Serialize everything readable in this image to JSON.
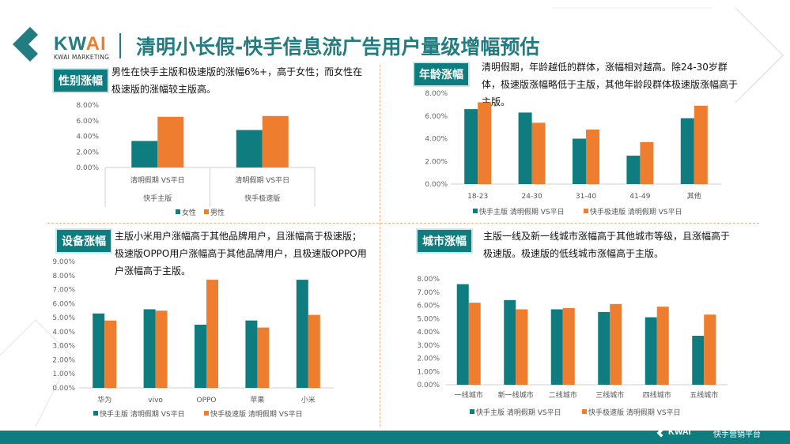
{
  "header": {
    "brand": "KW",
    "brand_accent": "AI",
    "brand_sub": "KWAI MARKETING",
    "title": "清明小长假-快手信息流广告用户量级增幅预估"
  },
  "colors": {
    "teal": "#0f7d7f",
    "orange": "#ef7d2f"
  },
  "sections": [
    {
      "tag": "性别涨幅",
      "desc": "男性在快手主版和极速版的涨幅6%+，高于女性；而女性在极速版的涨幅较主版高。"
    },
    {
      "tag": "年龄涨幅",
      "desc": "清明假期，年龄越低的群体，涨幅相对越高。除24-30岁群体，极速版涨幅略低于主版，其他年龄段群体极速版涨幅高于主版。"
    },
    {
      "tag": "设备涨幅",
      "desc": "主版小米用户涨幅高于其他品牌用户，且涨幅高于极速版；极速版OPPO用户涨幅高于其他品牌用户，且极速版OPPO用户涨幅高于主版。"
    },
    {
      "tag": "城市涨幅",
      "desc": "主版一线及新一线城市涨幅高于其他城市等级，且涨幅高于极速版。极速版的低线城市涨幅高于主版。"
    }
  ],
  "chart_data": [
    {
      "type": "bar",
      "categories": [
        "清明假期 VS平日",
        "清明假期 VS平日"
      ],
      "group_labels": [
        "快手主版",
        "快手极速版"
      ],
      "yticks": [
        "0.00%",
        "2.00%",
        "4.00%",
        "6.00%",
        "8.00%"
      ],
      "ylim": [
        0,
        8
      ],
      "series": [
        {
          "name": "女性",
          "values": [
            3.4,
            4.8
          ]
        },
        {
          "name": "男性",
          "values": [
            6.5,
            6.6
          ]
        }
      ],
      "legend": "bottom"
    },
    {
      "type": "bar",
      "categories": [
        "18-23",
        "24-30",
        "31-40",
        "41-49",
        "其他"
      ],
      "yticks": [
        "0.00%",
        "2.00%",
        "4.00%",
        "6.00%",
        "8.00%"
      ],
      "ylim": [
        0,
        8
      ],
      "series": [
        {
          "name": "快手主版 清明假期 VS平日",
          "values": [
            6.6,
            6.3,
            4.0,
            2.5,
            5.8
          ]
        },
        {
          "name": "快手极速版 清明假期 VS平日",
          "values": [
            7.2,
            5.4,
            4.8,
            3.7,
            6.9
          ]
        }
      ],
      "legend": "bottom"
    },
    {
      "type": "bar",
      "categories": [
        "华为",
        "vivo",
        "OPPO",
        "苹果",
        "小米"
      ],
      "yticks": [
        "0.00%",
        "1.00%",
        "2.00%",
        "3.00%",
        "4.00%",
        "5.00%",
        "6.00%",
        "7.00%",
        "8.00%",
        "9.00%"
      ],
      "ylim": [
        0,
        9
      ],
      "series": [
        {
          "name": "快手主版 清明假期 VS平日",
          "values": [
            5.3,
            5.6,
            4.5,
            4.8,
            7.7
          ]
        },
        {
          "name": "快手极速版 清明假期 VS平日",
          "values": [
            4.8,
            5.5,
            7.7,
            4.3,
            5.2
          ]
        }
      ],
      "legend": "bottom"
    },
    {
      "type": "bar",
      "categories": [
        "一线城市",
        "新一线城市",
        "二线城市",
        "三线城市",
        "四线城市",
        "五线城市"
      ],
      "yticks": [
        "0.00%",
        "1.00%",
        "2.00%",
        "3.00%",
        "4.00%",
        "5.00%",
        "6.00%",
        "7.00%",
        "8.00%"
      ],
      "ylim": [
        0,
        8
      ],
      "series": [
        {
          "name": "快手主版 清明假期 VS平日",
          "values": [
            7.6,
            6.4,
            5.7,
            5.5,
            5.1,
            3.7
          ]
        },
        {
          "name": "快手极速版 清明假期 VS平日",
          "values": [
            6.2,
            5.7,
            5.8,
            6.1,
            5.9,
            5.3
          ]
        }
      ],
      "legend": "bottom"
    }
  ],
  "footer": {
    "brand": "KWAI",
    "text": "快手营销平台"
  }
}
